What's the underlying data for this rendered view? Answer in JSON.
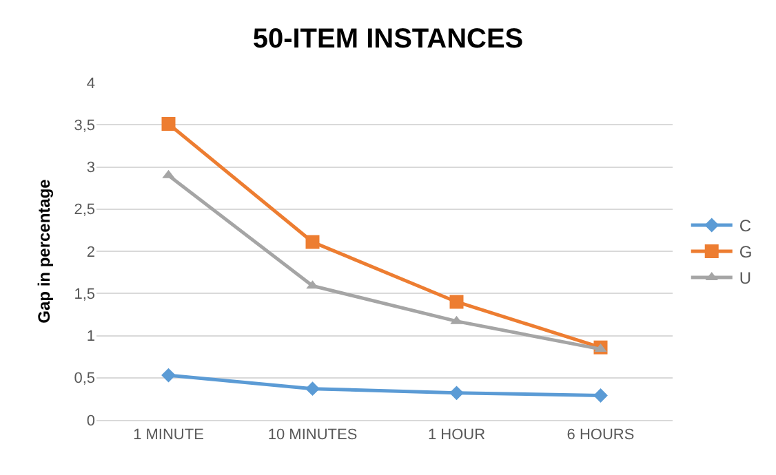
{
  "chart_data": {
    "type": "line",
    "title": "50-ITEM INSTANCES",
    "ylabel": "Gap in percentage",
    "categories": [
      "1 MINUTE",
      "10 MINUTES",
      "1 HOUR",
      "6 HOURS"
    ],
    "series": [
      {
        "name": "C",
        "color": "#5b9bd5",
        "marker": "diamond",
        "values": [
          0.53,
          0.37,
          0.32,
          0.29
        ]
      },
      {
        "name": "G",
        "color": "#ed7d31",
        "marker": "square",
        "values": [
          3.51,
          2.11,
          1.4,
          0.86
        ]
      },
      {
        "name": "U",
        "color": "#a5a5a5",
        "marker": "triangle",
        "values": [
          2.9,
          1.59,
          1.17,
          0.84
        ]
      }
    ],
    "ylim": [
      0,
      4
    ],
    "yticks": [
      0,
      {
        "value": 0.5,
        "label": "0,5"
      },
      1,
      {
        "value": 1.5,
        "label": "1,5"
      },
      2,
      {
        "value": 2.5,
        "label": "2,5"
      },
      3,
      {
        "value": 3.5,
        "label": "3,5"
      },
      4
    ],
    "grid": "y",
    "legend": "right",
    "line_style": "solid"
  }
}
